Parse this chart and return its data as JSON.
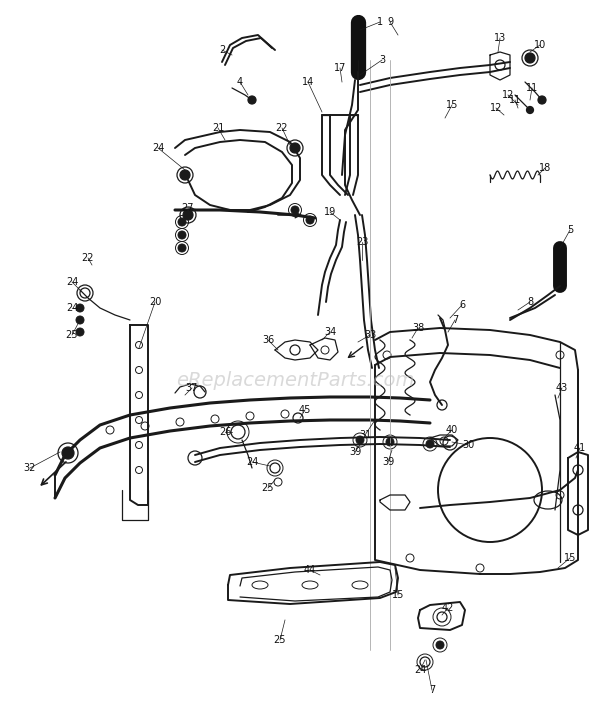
{
  "bg_color": "#ffffff",
  "line_color": "#1a1a1a",
  "light_line": "#555555",
  "label_color": "#111111",
  "label_fontsize": 7.0,
  "watermark": "eReplacementParts.com",
  "watermark_color": "#bbbbbb",
  "watermark_alpha": 0.55,
  "fig_width": 5.9,
  "fig_height": 7.17,
  "dpi": 100
}
